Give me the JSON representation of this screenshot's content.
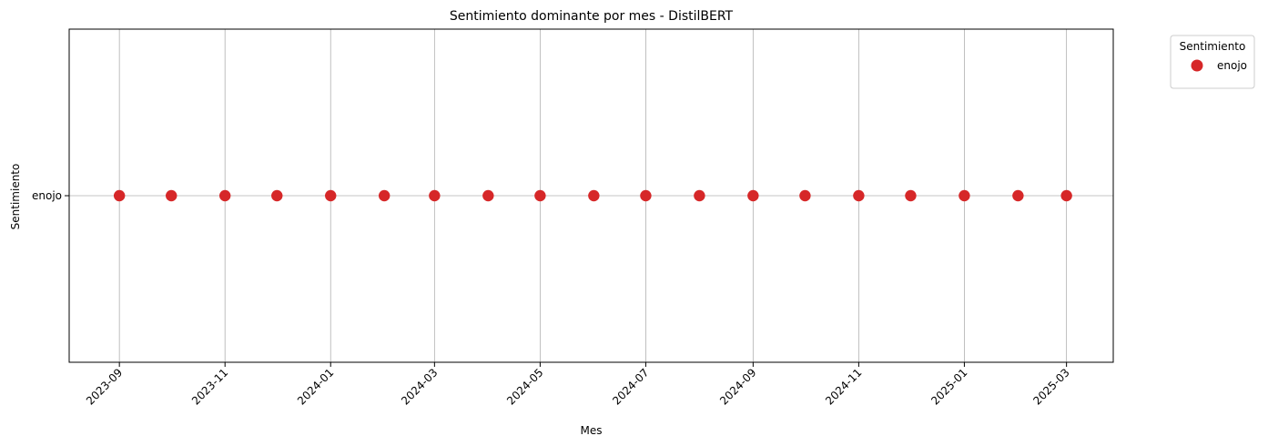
{
  "chart_data": {
    "type": "scatter",
    "title": "Sentimiento dominante por mes - DistilBERT",
    "xlabel": "Mes",
    "ylabel": "Sentimiento",
    "x_tick_labels": [
      "2023-09",
      "2023-11",
      "2024-01",
      "2024-03",
      "2024-05",
      "2024-07",
      "2024-09",
      "2024-11",
      "2025-01",
      "2025-03"
    ],
    "y_categories": [
      "enojo"
    ],
    "xlim": [
      "2023-08-03",
      "2025-03-28"
    ],
    "grid": true,
    "legend": {
      "title": "Sentimiento",
      "placement": "outside-top-right"
    },
    "series": [
      {
        "name": "enojo",
        "color": "#d62728",
        "x": [
          "2023-09-01",
          "2023-10-01",
          "2023-11-01",
          "2023-12-01",
          "2024-01-01",
          "2024-02-01",
          "2024-03-01",
          "2024-04-01",
          "2024-05-01",
          "2024-06-01",
          "2024-07-01",
          "2024-08-01",
          "2024-09-01",
          "2024-10-01",
          "2024-11-01",
          "2024-12-01",
          "2025-01-01",
          "2025-02-01",
          "2025-03-01"
        ],
        "y": [
          "enojo",
          "enojo",
          "enojo",
          "enojo",
          "enojo",
          "enojo",
          "enojo",
          "enojo",
          "enojo",
          "enojo",
          "enojo",
          "enojo",
          "enojo",
          "enojo",
          "enojo",
          "enojo",
          "enojo",
          "enojo",
          "enojo"
        ]
      }
    ]
  }
}
